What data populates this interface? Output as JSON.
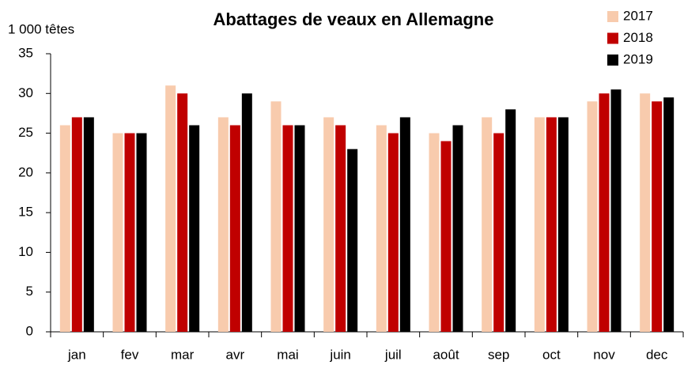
{
  "chart_data": {
    "type": "bar",
    "title": "Abattages de veaux en Allemagne",
    "y_label": "1 000 têtes",
    "categories": [
      "jan",
      "fev",
      "mar",
      "avr",
      "mai",
      "juin",
      "juil",
      "août",
      "sep",
      "oct",
      "nov",
      "dec"
    ],
    "series": [
      {
        "name": "2017",
        "color": "#f8cbad",
        "values": [
          26,
          25,
          31,
          27,
          29,
          27,
          26,
          25,
          27,
          27,
          29,
          30
        ]
      },
      {
        "name": "2018",
        "color": "#c00000",
        "values": [
          27,
          25,
          30,
          26,
          26,
          26,
          25,
          24,
          25,
          27,
          30,
          29
        ]
      },
      {
        "name": "2019",
        "color": "#000000",
        "values": [
          27,
          25,
          26,
          30,
          26,
          23,
          27,
          26,
          28,
          27,
          30.5,
          29.5
        ]
      }
    ],
    "ylim": [
      0,
      35
    ],
    "yticks": [
      0,
      5,
      10,
      15,
      20,
      25,
      30,
      35
    ],
    "legend": "top-right"
  }
}
